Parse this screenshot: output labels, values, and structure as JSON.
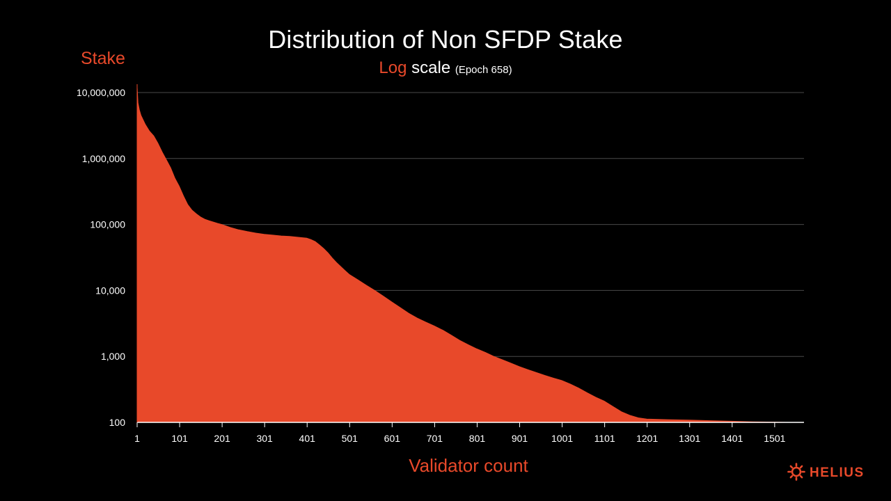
{
  "chart_data": {
    "type": "area",
    "title": "Distribution of Non SFDP Stake",
    "subtitle": {
      "highlight": "Log",
      "text": "scale",
      "note": "(Epoch 658)"
    },
    "ylabel": "Stake",
    "xlabel": "Validator count",
    "y_scale": "log",
    "ylim": [
      100,
      10000000
    ],
    "xlim": [
      1,
      1570
    ],
    "y_ticks": [
      {
        "value": 10000000,
        "label": "10,000,000"
      },
      {
        "value": 1000000,
        "label": "1,000,000"
      },
      {
        "value": 100000,
        "label": "100,000"
      },
      {
        "value": 10000,
        "label": "10,000"
      },
      {
        "value": 1000,
        "label": "1,000"
      },
      {
        "value": 100,
        "label": "100"
      }
    ],
    "x_ticks": [
      {
        "value": 1,
        "label": "1"
      },
      {
        "value": 101,
        "label": "101"
      },
      {
        "value": 201,
        "label": "201"
      },
      {
        "value": 301,
        "label": "301"
      },
      {
        "value": 401,
        "label": "401"
      },
      {
        "value": 501,
        "label": "501"
      },
      {
        "value": 601,
        "label": "601"
      },
      {
        "value": 701,
        "label": "701"
      },
      {
        "value": 801,
        "label": "801"
      },
      {
        "value": 901,
        "label": "901"
      },
      {
        "value": 1001,
        "label": "1001"
      },
      {
        "value": 1101,
        "label": "1101"
      },
      {
        "value": 1201,
        "label": "1201"
      },
      {
        "value": 1301,
        "label": "1301"
      },
      {
        "value": 1401,
        "label": "1401"
      },
      {
        "value": 1501,
        "label": "1501"
      }
    ],
    "grid": true,
    "series": [
      {
        "color": "#e8492a",
        "x": [
          1,
          3,
          6,
          10,
          20,
          30,
          40,
          50,
          60,
          70,
          80,
          90,
          100,
          110,
          120,
          130,
          140,
          150,
          160,
          170,
          180,
          190,
          200,
          220,
          240,
          260,
          280,
          300,
          320,
          340,
          360,
          380,
          400,
          410,
          420,
          430,
          440,
          450,
          460,
          470,
          480,
          490,
          500,
          520,
          540,
          560,
          580,
          600,
          620,
          640,
          660,
          680,
          700,
          720,
          740,
          760,
          780,
          800,
          820,
          840,
          860,
          880,
          900,
          920,
          940,
          960,
          980,
          1000,
          1020,
          1040,
          1060,
          1080,
          1100,
          1120,
          1140,
          1160,
          1180,
          1200,
          1250,
          1300,
          1350,
          1400,
          1450,
          1500,
          1530
        ],
        "values": [
          12000000,
          7000000,
          5500000,
          4500000,
          3300000,
          2600000,
          2200000,
          1700000,
          1250000,
          950000,
          720000,
          500000,
          380000,
          270000,
          200000,
          165000,
          145000,
          130000,
          120000,
          114000,
          109000,
          104000,
          100000,
          90000,
          83000,
          78000,
          74000,
          71000,
          69000,
          67000,
          66000,
          64000,
          62000,
          59000,
          55000,
          49000,
          43000,
          37000,
          31000,
          26500,
          23000,
          20000,
          17500,
          14500,
          12000,
          10000,
          8200,
          6700,
          5500,
          4500,
          3800,
          3300,
          2900,
          2500,
          2100,
          1750,
          1500,
          1300,
          1150,
          1000,
          890,
          790,
          700,
          630,
          570,
          515,
          470,
          430,
          380,
          330,
          280,
          240,
          210,
          175,
          145,
          128,
          117,
          112,
          110,
          108,
          106,
          104,
          102,
          101,
          100
        ]
      }
    ]
  },
  "logo": {
    "text": "HELIUS"
  }
}
